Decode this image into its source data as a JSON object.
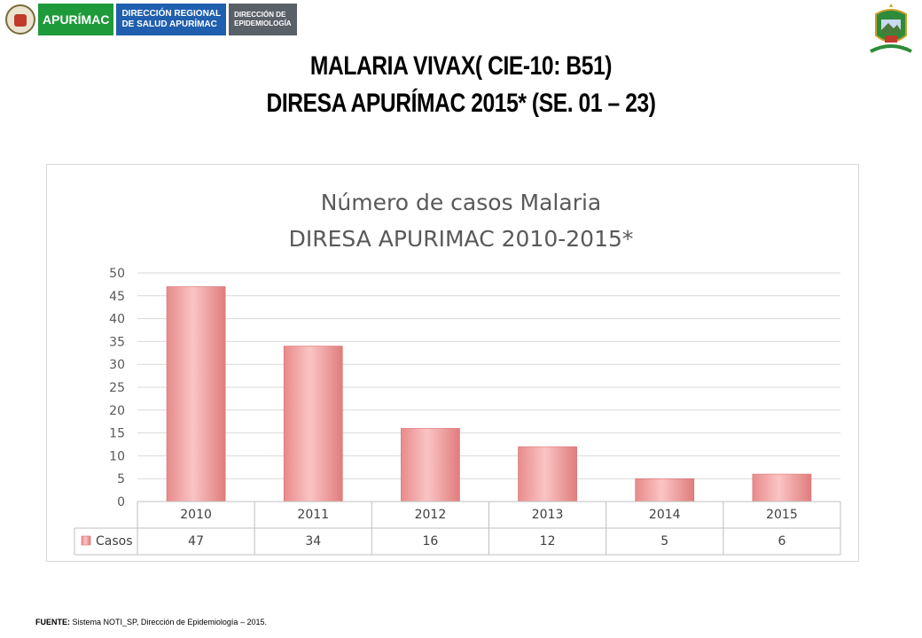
{
  "header": {
    "logo_apurimac": "APURÍMAC",
    "logo_diresa_line1": "DIRECCIÓN REGIONAL",
    "logo_diresa_line2": "DE SALUD APURÍMAC",
    "logo_epi_line1": "DIRECCIÓN DE",
    "logo_epi_line2": "EPIDEMIOLOGÍA"
  },
  "page": {
    "title_line1": "MALARIA VIVAX( CIE-10: B51)",
    "title_line2": "DIRESA APURÍMAC 2015* (SE. 01 – 23)"
  },
  "chart_data": {
    "type": "bar",
    "title": "Número de casos Malaria",
    "subtitle": "DIRESA APURIMAC 2010-2015*",
    "categories": [
      "2010",
      "2011",
      "2012",
      "2013",
      "2014",
      "2015"
    ],
    "series": [
      {
        "name": "Casos",
        "values": [
          47,
          34,
          16,
          12,
          5,
          6
        ],
        "color": "#f4a6a6"
      }
    ],
    "ylim": [
      0,
      50
    ],
    "yticks": [
      0,
      5,
      10,
      15,
      20,
      25,
      30,
      35,
      40,
      45,
      50
    ],
    "grid": true,
    "data_table": true
  },
  "source": {
    "label": "FUENTE:",
    "text": "Sistema NOTI_SP, Dirección de Epidemiología – 2015."
  }
}
